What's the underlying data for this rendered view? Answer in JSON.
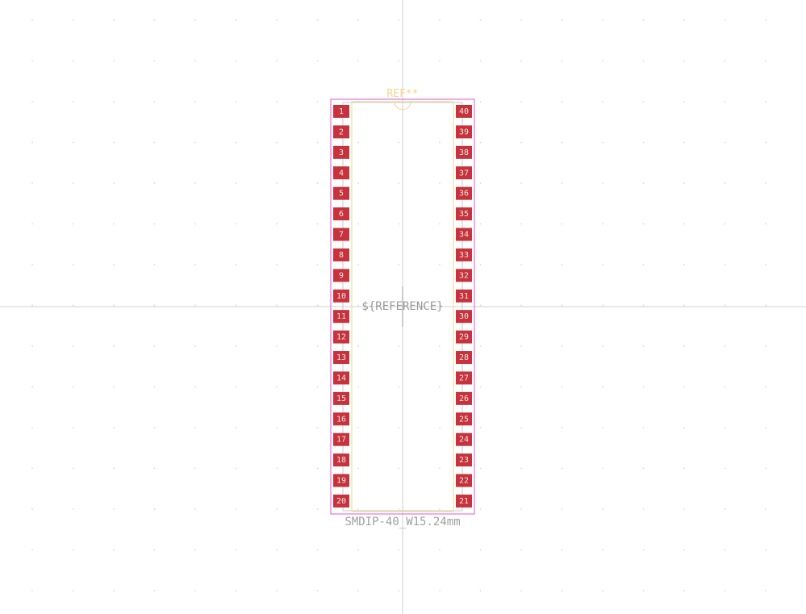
{
  "footprint": {
    "reference": "REF**",
    "reference_field": "${REFERENCE}",
    "value": "SMDIP-40_W15.24mm",
    "pin_count": 40,
    "pins_left": [
      "1",
      "2",
      "3",
      "4",
      "5",
      "6",
      "7",
      "8",
      "9",
      "10",
      "11",
      "12",
      "13",
      "14",
      "15",
      "16",
      "17",
      "18",
      "19",
      "20"
    ],
    "pins_right": [
      "40",
      "39",
      "38",
      "37",
      "36",
      "35",
      "34",
      "33",
      "32",
      "31",
      "30",
      "29",
      "28",
      "27",
      "26",
      "25",
      "24",
      "23",
      "22",
      "21"
    ]
  },
  "colors": {
    "background": "#ffffff",
    "pad": "#c8323c",
    "courtyard": "#e05ad0",
    "silkscreen": "#f2d68a",
    "fab": "#c9c9c9",
    "crosshair": "#cfcfcf",
    "grid_dot": "#d9d9d9"
  }
}
